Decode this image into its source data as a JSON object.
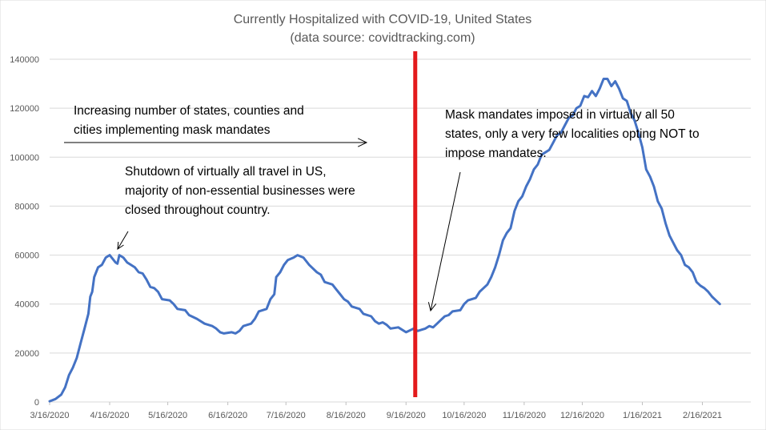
{
  "chart_data": {
    "type": "line",
    "title": "Currently Hospitalized with COVID-19, United States",
    "subtitle": "(data source: covidtracking.com)",
    "xlabel": "",
    "ylabel": "",
    "ylim": [
      0,
      140000
    ],
    "yticks": [
      0,
      20000,
      40000,
      60000,
      80000,
      100000,
      120000,
      140000
    ],
    "ytick_labels": [
      "0",
      "20000",
      "40000",
      "60000",
      "80000",
      "100000",
      "120000",
      "140000"
    ],
    "xlim_days": [
      0,
      362
    ],
    "xticks": [
      {
        "label": "3/16/2020",
        "day": 0
      },
      {
        "label": "4/16/2020",
        "day": 31
      },
      {
        "label": "5/16/2020",
        "day": 61
      },
      {
        "label": "6/16/2020",
        "day": 92
      },
      {
        "label": "7/16/2020",
        "day": 122
      },
      {
        "label": "8/16/2020",
        "day": 153
      },
      {
        "label": "9/16/2020",
        "day": 184
      },
      {
        "label": "10/16/2020",
        "day": 214
      },
      {
        "label": "11/16/2020",
        "day": 245
      },
      {
        "label": "12/16/2020",
        "day": 275
      },
      {
        "label": "1/16/2021",
        "day": 306
      },
      {
        "label": "2/16/2021",
        "day": 337
      }
    ],
    "grid": true,
    "legend": "none",
    "colors": {
      "series": "#4472c4",
      "marker_line": "#e31a1c",
      "grid": "#d9d9d9",
      "text": "#595959"
    },
    "series": [
      {
        "name": "Currently Hospitalized",
        "points": [
          [
            0,
            300
          ],
          [
            3,
            1200
          ],
          [
            6,
            3000
          ],
          [
            8,
            6000
          ],
          [
            10,
            11000
          ],
          [
            12,
            14000
          ],
          [
            14,
            18000
          ],
          [
            16,
            24000
          ],
          [
            18,
            30000
          ],
          [
            20,
            36000
          ],
          [
            21,
            43000
          ],
          [
            22,
            45000
          ],
          [
            23,
            51000
          ],
          [
            25,
            55000
          ],
          [
            27,
            56000
          ],
          [
            29,
            59000
          ],
          [
            31,
            60000
          ],
          [
            32,
            59000
          ],
          [
            34,
            57000
          ],
          [
            35,
            56500
          ],
          [
            36,
            60000
          ],
          [
            38,
            59000
          ],
          [
            40,
            57000
          ],
          [
            42,
            56000
          ],
          [
            44,
            55000
          ],
          [
            46,
            53000
          ],
          [
            48,
            52500
          ],
          [
            50,
            50000
          ],
          [
            52,
            47000
          ],
          [
            54,
            46500
          ],
          [
            56,
            45000
          ],
          [
            58,
            42000
          ],
          [
            62,
            41500
          ],
          [
            64,
            40000
          ],
          [
            66,
            38000
          ],
          [
            70,
            37500
          ],
          [
            72,
            35500
          ],
          [
            76,
            34000
          ],
          [
            80,
            32000
          ],
          [
            84,
            31000
          ],
          [
            86,
            30000
          ],
          [
            88,
            28500
          ],
          [
            90,
            28000
          ],
          [
            94,
            28500
          ],
          [
            96,
            28000
          ],
          [
            98,
            29000
          ],
          [
            100,
            31000
          ],
          [
            104,
            32000
          ],
          [
            106,
            34000
          ],
          [
            108,
            37000
          ],
          [
            112,
            38000
          ],
          [
            114,
            42000
          ],
          [
            116,
            44000
          ],
          [
            117,
            51000
          ],
          [
            119,
            53000
          ],
          [
            121,
            56000
          ],
          [
            123,
            58000
          ],
          [
            126,
            59000
          ],
          [
            128,
            60000
          ],
          [
            131,
            59000
          ],
          [
            134,
            56000
          ],
          [
            138,
            53000
          ],
          [
            140,
            52000
          ],
          [
            142,
            49000
          ],
          [
            146,
            48000
          ],
          [
            148,
            46000
          ],
          [
            150,
            44000
          ],
          [
            152,
            42000
          ],
          [
            154,
            41000
          ],
          [
            156,
            39000
          ],
          [
            160,
            38000
          ],
          [
            162,
            36000
          ],
          [
            166,
            35000
          ],
          [
            168,
            33000
          ],
          [
            170,
            32000
          ],
          [
            172,
            32500
          ],
          [
            174,
            31500
          ],
          [
            176,
            30000
          ],
          [
            180,
            30500
          ],
          [
            184,
            28500
          ],
          [
            188,
            30000
          ],
          [
            190,
            29000
          ],
          [
            192,
            29500
          ],
          [
            194,
            30000
          ],
          [
            196,
            31000
          ],
          [
            198,
            30500
          ],
          [
            200,
            32000
          ],
          [
            202,
            33500
          ],
          [
            204,
            35000
          ],
          [
            206,
            35500
          ],
          [
            208,
            37000
          ],
          [
            212,
            37500
          ],
          [
            214,
            40000
          ],
          [
            216,
            41500
          ],
          [
            220,
            42500
          ],
          [
            222,
            45000
          ],
          [
            224,
            46500
          ],
          [
            226,
            48000
          ],
          [
            228,
            51000
          ],
          [
            230,
            55000
          ],
          [
            232,
            60000
          ],
          [
            234,
            66000
          ],
          [
            236,
            69000
          ],
          [
            238,
            71000
          ],
          [
            240,
            78000
          ],
          [
            242,
            82000
          ],
          [
            244,
            84000
          ],
          [
            246,
            88000
          ],
          [
            248,
            91000
          ],
          [
            250,
            95000
          ],
          [
            252,
            97000
          ],
          [
            254,
            101000
          ],
          [
            256,
            102000
          ],
          [
            258,
            103000
          ],
          [
            260,
            106000
          ],
          [
            262,
            109000
          ],
          [
            264,
            110000
          ],
          [
            266,
            113000
          ],
          [
            268,
            116000
          ],
          [
            270,
            117000
          ],
          [
            272,
            120000
          ],
          [
            274,
            121000
          ],
          [
            276,
            125000
          ],
          [
            278,
            124500
          ],
          [
            280,
            127000
          ],
          [
            282,
            125000
          ],
          [
            284,
            128000
          ],
          [
            286,
            132000
          ],
          [
            288,
            132000
          ],
          [
            290,
            129000
          ],
          [
            292,
            131000
          ],
          [
            294,
            128000
          ],
          [
            296,
            124000
          ],
          [
            298,
            123000
          ],
          [
            300,
            118000
          ],
          [
            302,
            115000
          ],
          [
            304,
            110000
          ],
          [
            306,
            104000
          ],
          [
            308,
            95000
          ],
          [
            310,
            92000
          ],
          [
            312,
            88000
          ],
          [
            314,
            82000
          ],
          [
            316,
            79000
          ],
          [
            318,
            73000
          ],
          [
            320,
            68000
          ],
          [
            322,
            65000
          ],
          [
            324,
            62000
          ],
          [
            326,
            60000
          ],
          [
            328,
            56000
          ],
          [
            330,
            55000
          ],
          [
            332,
            53000
          ],
          [
            334,
            49000
          ],
          [
            336,
            47500
          ],
          [
            338,
            46500
          ],
          [
            340,
            45000
          ],
          [
            342,
            43000
          ],
          [
            344,
            41500
          ],
          [
            346,
            40000
          ]
        ]
      }
    ],
    "vertical_marker_day": 190,
    "annotations": [
      {
        "id": "mask-increase",
        "lines": [
          "Increasing number of states, counties and",
          "cities implementing mask mandates"
        ]
      },
      {
        "id": "shutdown",
        "lines": [
          "Shutdown of virtually all travel in US,",
          "majority of non-essential businesses were",
          "closed throughout country."
        ]
      },
      {
        "id": "mask-all",
        "lines": [
          "Mask mandates imposed in virtually all 50",
          "states, only a very few localities opting NOT to",
          "impose mandates."
        ]
      }
    ]
  }
}
